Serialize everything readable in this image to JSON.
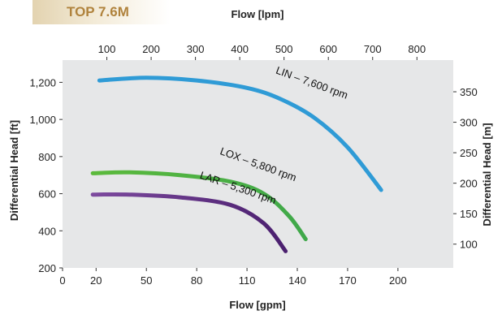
{
  "badge": "TOP 7.6M",
  "chart_data": {
    "type": "line",
    "title": "TOP 7.6M",
    "x_bottom": {
      "label": "Flow [gpm]",
      "range": [
        0,
        233
      ],
      "ticks": [
        0,
        20,
        50,
        80,
        110,
        140,
        170,
        200
      ]
    },
    "x_top": {
      "label": "Flow [lpm]",
      "range": [
        0,
        882
      ],
      "ticks": [
        100,
        200,
        300,
        400,
        500,
        600,
        700,
        800
      ]
    },
    "y_left": {
      "label": "Differential Head [ft]",
      "range": [
        200,
        1320
      ],
      "ticks": [
        200,
        400,
        600,
        800,
        1000,
        1200
      ],
      "tick_labels": [
        "200",
        "400",
        "600",
        "800",
        "1,000",
        "1,200"
      ]
    },
    "y_right": {
      "label": "Differential Head [m]",
      "range": [
        61,
        402
      ],
      "ticks": [
        100,
        150,
        200,
        250,
        300,
        350
      ]
    },
    "grid": false,
    "series": [
      {
        "name": "LIN – 7,600 rpm",
        "color": "#2f9bd6",
        "x": [
          22,
          50,
          80,
          110,
          130,
          150,
          170,
          190
        ],
        "y": [
          1210,
          1225,
          1210,
          1170,
          1110,
          1010,
          850,
          620
        ]
      },
      {
        "name": "LOX – 5,800 rpm",
        "color": "#5cba3c",
        "color_end": "#3fa84a",
        "x": [
          18,
          40,
          70,
          100,
          120,
          135,
          145
        ],
        "y": [
          710,
          715,
          700,
          665,
          600,
          480,
          355
        ]
      },
      {
        "name": "LAR – 5,300 rpm",
        "color": "#7d4a9e",
        "color_end": "#4a1f6e",
        "x": [
          18,
          40,
          70,
          100,
          120,
          133
        ],
        "y": [
          595,
          595,
          580,
          540,
          440,
          290
        ]
      }
    ]
  }
}
